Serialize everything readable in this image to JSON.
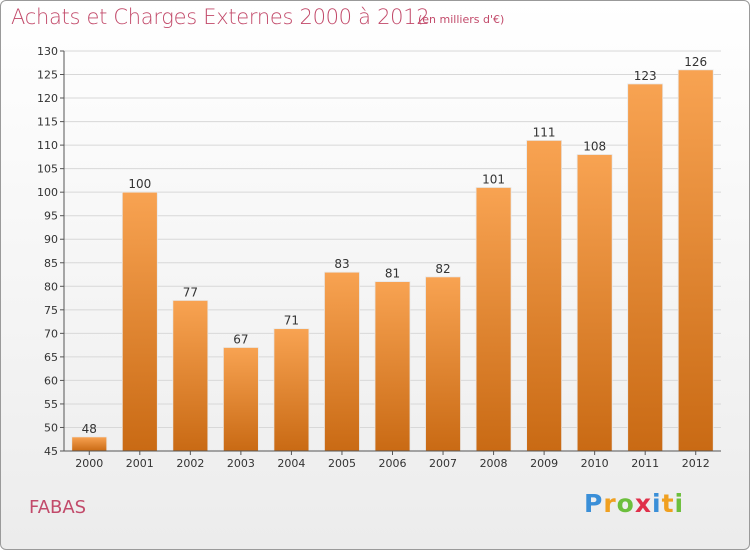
{
  "header": {
    "title": "Achats et Charges Externes 2000 à 2012",
    "subtitle": "(en milliers d'€)"
  },
  "footer": {
    "commune": "FABAS",
    "logo": {
      "letters": [
        {
          "char": "P",
          "color": "#3a8fd8"
        },
        {
          "char": "r",
          "color": "#f0a020"
        },
        {
          "char": "o",
          "color": "#6cbf3c"
        },
        {
          "char": "x",
          "color": "#e0304a"
        },
        {
          "char": "i",
          "color": "#3a8fd8"
        },
        {
          "char": "t",
          "color": "#f0a020"
        },
        {
          "char": "i",
          "color": "#6cbf3c"
        }
      ]
    }
  },
  "colors": {
    "bar_top": "#f8a352",
    "bar_bottom": "#c96a14",
    "grid": "#d8d8d8",
    "axis": "#555555",
    "title": "#c24a6a"
  },
  "chart_data": {
    "type": "bar",
    "categories": [
      "2000",
      "2001",
      "2002",
      "2003",
      "2004",
      "2005",
      "2006",
      "2007",
      "2008",
      "2009",
      "2010",
      "2011",
      "2012"
    ],
    "values": [
      48,
      100,
      77,
      67,
      71,
      83,
      81,
      82,
      101,
      111,
      108,
      123,
      126
    ],
    "title": "Achats et Charges Externes 2000 à 2012",
    "subtitle": "(en milliers d'€)",
    "ylim": [
      45,
      130
    ],
    "yticks": [
      45,
      50,
      55,
      60,
      65,
      70,
      75,
      80,
      85,
      90,
      95,
      100,
      105,
      110,
      115,
      120,
      125,
      130
    ],
    "grid": true,
    "data_labels": true
  }
}
